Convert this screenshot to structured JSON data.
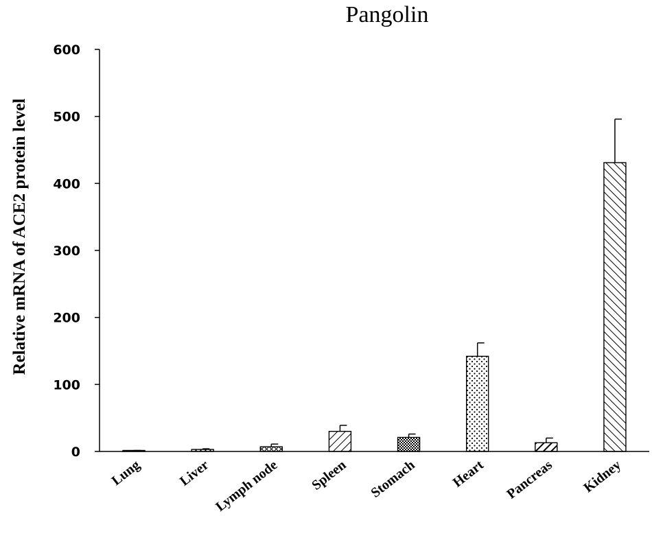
{
  "chart_data": {
    "type": "bar",
    "title": "Pangolin",
    "ylabel": "Relative mRNA of ACE2 protein level",
    "xlabel": "",
    "ylim": [
      0,
      600
    ],
    "yticks": [
      0,
      100,
      200,
      300,
      400,
      500,
      600
    ],
    "grid": false,
    "categories": [
      "Lung",
      "Liver",
      "Lymph node",
      "Spleen",
      "Stomach",
      "Heart",
      "Pancreas",
      "Kidney"
    ],
    "values": [
      1,
      3,
      7,
      30,
      21,
      142,
      13,
      431
    ],
    "errors": [
      0.5,
      1,
      4,
      9,
      5,
      20,
      7,
      65
    ],
    "patterns": [
      "dots",
      "dots",
      "crosshatch",
      "diagonal",
      "dense-dots",
      "dots",
      "thick-diagonal",
      "reverse-diagonal"
    ]
  }
}
